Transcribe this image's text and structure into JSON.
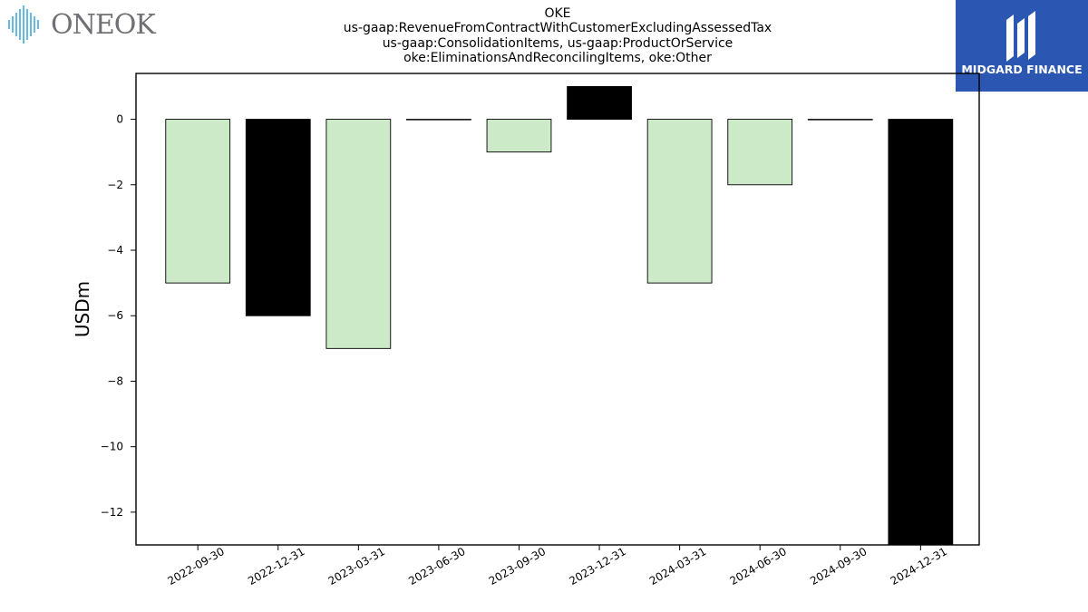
{
  "logos": {
    "left_text": "ONEOK",
    "right_text": "MIDGARD FINANCE",
    "right_color": "#2b57b3"
  },
  "chart_data": {
    "type": "bar",
    "title_lines": [
      "OKE",
      "us-gaap:RevenueFromContractWithCustomerExcludingAssessedTax",
      "us-gaap:ConsolidationItems, us-gaap:ProductOrService",
      "oke:EliminationsAndReconcilingItems, oke:Other"
    ],
    "xlabel": "",
    "ylabel": "USDm",
    "categories": [
      "2022-09-30",
      "2022-12-31",
      "2023-03-31",
      "2023-06-30",
      "2023-09-30",
      "2023-12-31",
      "2024-03-31",
      "2024-06-30",
      "2024-09-30",
      "2024-12-31"
    ],
    "values": [
      -5,
      -6,
      -7,
      0,
      -1,
      1,
      -5,
      -2,
      0,
      -13
    ],
    "bar_colors": [
      "#cdeac8",
      "#000000",
      "#cdeac8",
      "#cdeac8",
      "#cdeac8",
      "#000000",
      "#cdeac8",
      "#cdeac8",
      "#cdeac8",
      "#000000"
    ],
    "yticks": [
      0,
      -2,
      -4,
      -6,
      -8,
      -10,
      -12
    ],
    "ytick_labels": [
      "0",
      "−2",
      "−4",
      "−6",
      "−8",
      "−10",
      "−12"
    ],
    "ylim": [
      -13,
      1.4
    ],
    "grid": false
  }
}
